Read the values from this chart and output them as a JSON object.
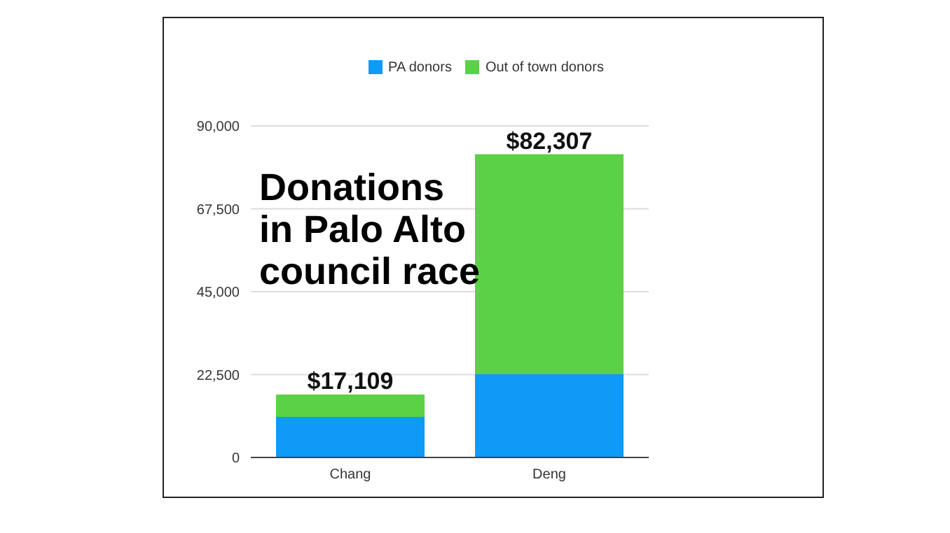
{
  "chart_data": {
    "type": "bar",
    "title": "Donations in Palo Alto council race",
    "categories": [
      "Chang",
      "Deng"
    ],
    "stacked": true,
    "series": [
      {
        "name": "PA donors",
        "color": "#0f9af7",
        "values": [
          11000,
          22600
        ]
      },
      {
        "name": "Out of town donors",
        "color": "#5bd145",
        "values": [
          6109,
          59707
        ]
      }
    ],
    "ylim": [
      0,
      90000
    ],
    "yticks": [
      0,
      {
        "value": 22500,
        "label": "22,500"
      },
      {
        "value": 45000,
        "label": "45,000"
      },
      {
        "value": 67500,
        "label": "67,500"
      },
      {
        "value": 90000,
        "label": "90,000"
      }
    ],
    "totals": [
      "$17,109",
      "$82,307"
    ],
    "grid": "y",
    "legend": "top"
  }
}
